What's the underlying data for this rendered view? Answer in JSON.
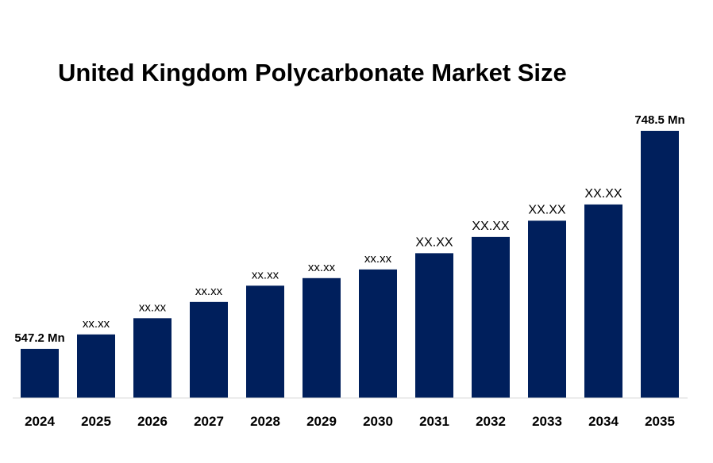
{
  "chart_data": {
    "type": "bar",
    "title": "United Kingdom Polycarbonate Market Size",
    "xlabel": "",
    "ylabel": "",
    "categories": [
      "2024",
      "2025",
      "2026",
      "2027",
      "2028",
      "2029",
      "2030",
      "2031",
      "2032",
      "2033",
      "2034",
      "2035"
    ],
    "values": [
      547.2,
      560.5,
      575.5,
      590.5,
      605.5,
      612.5,
      620.5,
      635.5,
      650.5,
      665.5,
      680.5,
      748.5
    ],
    "data_labels": [
      "547.2 Mn",
      "xx.xx",
      "xx.xx",
      "xx.xx",
      "xx.xx",
      "xx.xx",
      "xx.xx",
      "XX.XX",
      "XX.XX",
      "XX.XX",
      "XX.XX",
      "748.5 Mn"
    ],
    "bar_color": "#001f5c",
    "grid": false,
    "legend": "none"
  }
}
